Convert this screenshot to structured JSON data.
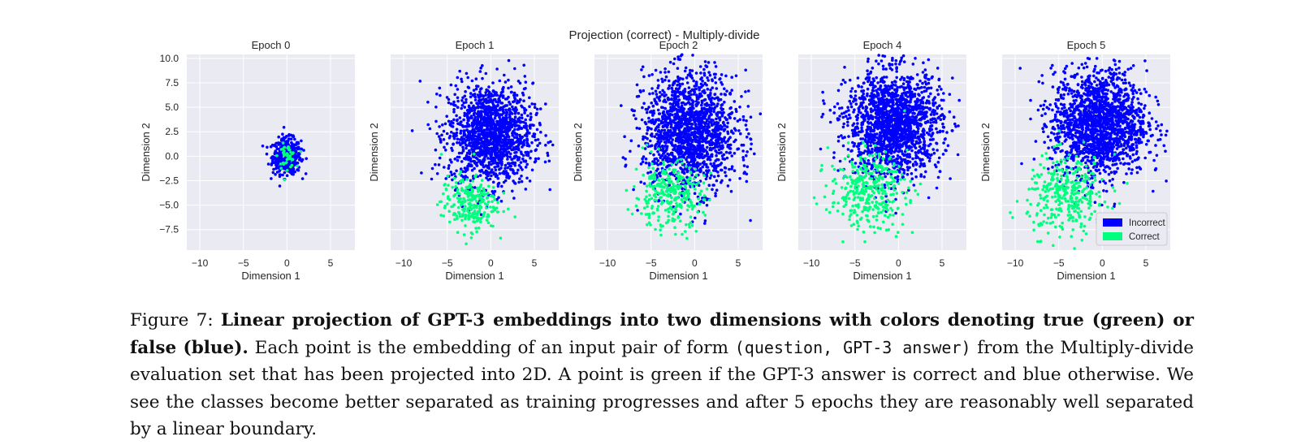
{
  "figure": {
    "suptitle": "Projection (correct) - Multiply-divide",
    "legend": [
      {
        "label": "Incorrect",
        "color": "#0000ff"
      },
      {
        "label": "Correct",
        "color": "#00ff7f"
      }
    ]
  },
  "chart_data": [
    {
      "type": "scatter",
      "title": "Epoch 0",
      "xlabel": "Dimension 1",
      "ylabel": "Dimension 2",
      "xlim": [
        -11.5,
        7.8
      ],
      "ylim": [
        -9.6,
        10.4
      ],
      "xticks": [
        "−10",
        "−5",
        "0",
        "5"
      ],
      "yticks": [
        "10.0",
        "7.5",
        "5.0",
        "2.5",
        "0.0",
        "−2.5",
        "−5.0",
        "−7.5"
      ],
      "grid": true,
      "series": [
        {
          "name": "Incorrect",
          "color": "#0000ff",
          "center": [
            0,
            0
          ],
          "spread": [
            0.8,
            0.9
          ],
          "count": 500
        },
        {
          "name": "Correct",
          "color": "#00ff7f",
          "center": [
            0,
            0
          ],
          "spread": [
            0.5,
            0.6
          ],
          "count": 50
        }
      ]
    },
    {
      "type": "scatter",
      "title": "Epoch 1",
      "xlabel": "Dimension 1",
      "ylabel": "Dimension 2",
      "xlim": [
        -11.5,
        7.8
      ],
      "ylim": [
        -9.6,
        10.4
      ],
      "xticks": [
        "−10",
        "−5",
        "0",
        "5"
      ],
      "grid": true,
      "series": [
        {
          "name": "Incorrect",
          "color": "#0000ff",
          "center": [
            0,
            2.2
          ],
          "spread": [
            2.4,
            2.6
          ],
          "count": 1500
        },
        {
          "name": "Correct",
          "color": "#00ff7f",
          "center": [
            -2.5,
            -4.8
          ],
          "spread": [
            1.6,
            1.4
          ],
          "count": 250
        }
      ]
    },
    {
      "type": "scatter",
      "title": "Epoch 2",
      "xlabel": "Dimension 1",
      "ylabel": "Dimension 2",
      "xlim": [
        -11.5,
        7.8
      ],
      "ylim": [
        -9.6,
        10.4
      ],
      "xticks": [
        "−10",
        "−5",
        "0",
        "5"
      ],
      "grid": true,
      "series": [
        {
          "name": "Incorrect",
          "color": "#0000ff",
          "center": [
            -0.5,
            2.5
          ],
          "spread": [
            2.7,
            3.0
          ],
          "count": 1600
        },
        {
          "name": "Correct",
          "color": "#00ff7f",
          "center": [
            -3.0,
            -4.0
          ],
          "spread": [
            2.0,
            1.7
          ],
          "count": 300
        }
      ]
    },
    {
      "type": "scatter",
      "title": "Epoch 4",
      "xlabel": "Dimension 1",
      "ylabel": "Dimension 2",
      "xlim": [
        -11.5,
        7.8
      ],
      "ylim": [
        -9.6,
        10.4
      ],
      "xticks": [
        "−10",
        "−5",
        "0",
        "5"
      ],
      "grid": true,
      "series": [
        {
          "name": "Incorrect",
          "color": "#0000ff",
          "center": [
            -0.5,
            3.3
          ],
          "spread": [
            2.7,
            2.7
          ],
          "count": 1700
        },
        {
          "name": "Correct",
          "color": "#00ff7f",
          "center": [
            -3.5,
            -3.5
          ],
          "spread": [
            2.2,
            1.9
          ],
          "count": 350
        }
      ]
    },
    {
      "type": "scatter",
      "title": "Epoch 5",
      "xlabel": "Dimension 1",
      "ylabel": "Dimension 2",
      "xlim": [
        -11.5,
        7.8
      ],
      "ylim": [
        -9.6,
        10.4
      ],
      "xticks": [
        "−10",
        "−5",
        "0",
        "5"
      ],
      "grid": true,
      "legend_loc": "lower right",
      "series": [
        {
          "name": "Incorrect",
          "color": "#0000ff",
          "center": [
            -0.3,
            3.3
          ],
          "spread": [
            2.7,
            2.7
          ],
          "count": 1700
        },
        {
          "name": "Correct",
          "color": "#00ff7f",
          "center": [
            -4.0,
            -4.0
          ],
          "spread": [
            2.3,
            2.0
          ],
          "count": 350
        }
      ]
    }
  ],
  "caption": {
    "label": "Figure 7:",
    "bold": "Linear projection of GPT-3 embeddings into two dimensions with colors denoting true (green) or false (blue).",
    "text1": "Each point is the embedding of an input pair of form",
    "code": "(question, GPT-3 answer)",
    "text2": "from the Multiply-divide evaluation set that has been projected into 2D. A point is green if the GPT-3 answer is correct and blue otherwise. We see the classes become better separated as training progresses and after 5 epochs they are reasonably well separated by a linear boundary."
  }
}
